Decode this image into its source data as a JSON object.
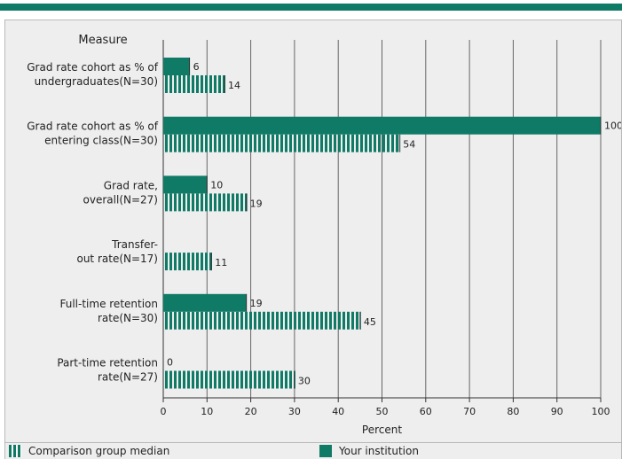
{
  "chart_data": {
    "type": "bar",
    "orientation": "horizontal",
    "category_axis_title": "Measure",
    "xlabel": "Percent",
    "xlim": [
      0,
      100
    ],
    "xticks": [
      0,
      10,
      20,
      30,
      40,
      50,
      60,
      70,
      80,
      90,
      100
    ],
    "grid": true,
    "categories": [
      [
        "Grad rate cohort as % of",
        "undergraduates(N=30)"
      ],
      [
        "Grad rate cohort as % of",
        "entering class(N=30)"
      ],
      [
        "Grad rate,",
        "overall(N=27)"
      ],
      [
        "Transfer-",
        "out rate(N=17)"
      ],
      [
        "Full-time retention",
        "rate(N=30)"
      ],
      [
        "Part-time retention",
        "rate(N=27)"
      ]
    ],
    "series": [
      {
        "name": "Your institution",
        "values": [
          6,
          100,
          10,
          null,
          19,
          0
        ]
      },
      {
        "name": "Comparison group median",
        "values": [
          14,
          54,
          19,
          11,
          45,
          30
        ]
      }
    ],
    "colors": {
      "primary": "#0f7a66",
      "frame": "#eeeeee",
      "grid": "#666666"
    }
  },
  "legend": {
    "comparison": "Comparison group median",
    "institution": "Your institution"
  }
}
